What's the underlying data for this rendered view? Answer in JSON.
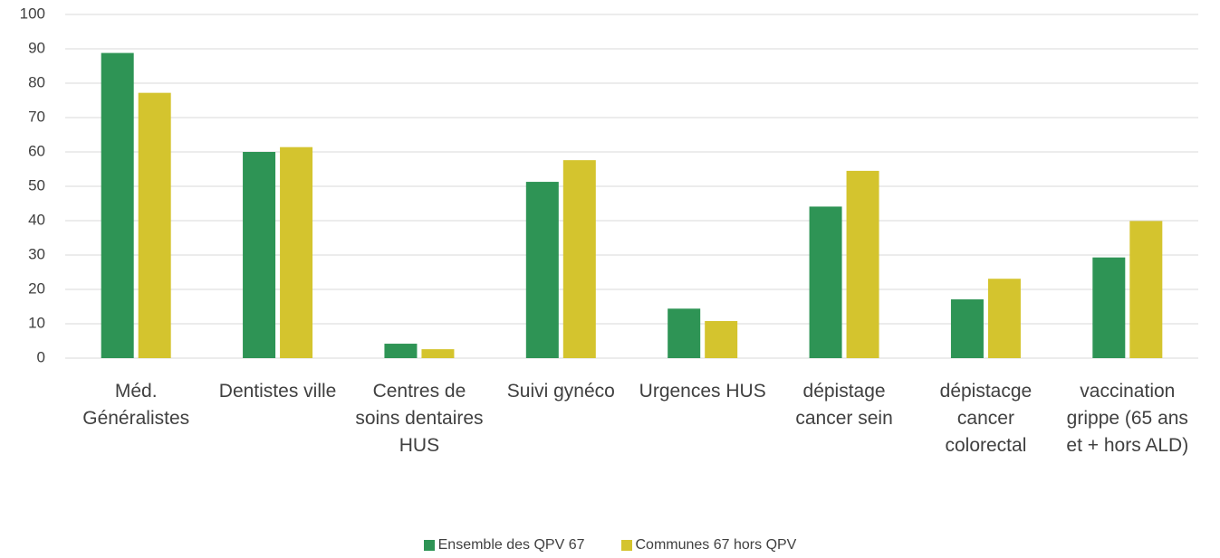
{
  "chart_data": {
    "type": "bar",
    "categories": [
      "Méd. Généralistes",
      "Dentistes ville",
      "Centres de soins dentaires HUS",
      "Suivi gynéco",
      "Urgences HUS",
      "dépistage cancer sein",
      "dépistacge cancer colorectal",
      "vaccination grippe (65 ans et + hors ALD)"
    ],
    "series": [
      {
        "name": "Ensemble des QPV 67",
        "color": "#2e9455",
        "values": [
          88.8,
          60,
          4.2,
          51.3,
          14.4,
          44.1,
          17.1,
          29.3
        ]
      },
      {
        "name": "Communes 67 hors QPV",
        "color": "#d4c42e",
        "values": [
          77.2,
          61.4,
          2.6,
          57.6,
          10.8,
          54.5,
          23.1,
          39.9
        ]
      }
    ],
    "ylim": [
      0,
      100
    ],
    "yticks": [
      0,
      10,
      20,
      30,
      40,
      50,
      60,
      70,
      80,
      90,
      100
    ],
    "grid": true,
    "legend": "bottom"
  }
}
